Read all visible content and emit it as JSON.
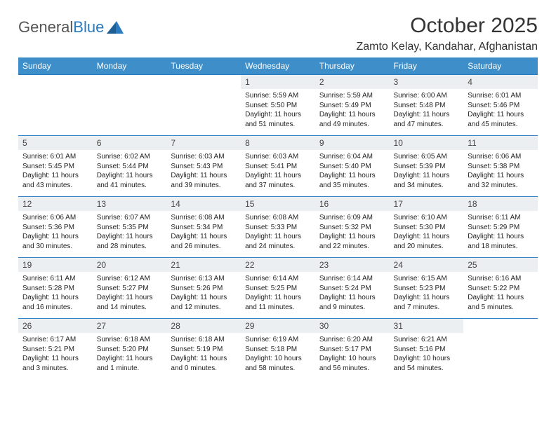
{
  "brand": {
    "part1": "General",
    "part2": "Blue"
  },
  "title": "October 2025",
  "location": "Zamto Kelay, Kandahar, Afghanistan",
  "colors": {
    "header_bg": "#3e8ec9",
    "header_text": "#ffffff",
    "row_border": "#2a7bbf",
    "daynum_bg": "#eceff1",
    "text": "#222222",
    "brand_gray": "#555555",
    "brand_blue": "#2a7bbf"
  },
  "weekdays": [
    "Sunday",
    "Monday",
    "Tuesday",
    "Wednesday",
    "Thursday",
    "Friday",
    "Saturday"
  ],
  "weeks": [
    [
      {
        "empty": true
      },
      {
        "empty": true
      },
      {
        "empty": true
      },
      {
        "day": "1",
        "sunrise": "5:59 AM",
        "sunset": "5:50 PM",
        "daylight": "11 hours and 51 minutes."
      },
      {
        "day": "2",
        "sunrise": "5:59 AM",
        "sunset": "5:49 PM",
        "daylight": "11 hours and 49 minutes."
      },
      {
        "day": "3",
        "sunrise": "6:00 AM",
        "sunset": "5:48 PM",
        "daylight": "11 hours and 47 minutes."
      },
      {
        "day": "4",
        "sunrise": "6:01 AM",
        "sunset": "5:46 PM",
        "daylight": "11 hours and 45 minutes."
      }
    ],
    [
      {
        "day": "5",
        "sunrise": "6:01 AM",
        "sunset": "5:45 PM",
        "daylight": "11 hours and 43 minutes."
      },
      {
        "day": "6",
        "sunrise": "6:02 AM",
        "sunset": "5:44 PM",
        "daylight": "11 hours and 41 minutes."
      },
      {
        "day": "7",
        "sunrise": "6:03 AM",
        "sunset": "5:43 PM",
        "daylight": "11 hours and 39 minutes."
      },
      {
        "day": "8",
        "sunrise": "6:03 AM",
        "sunset": "5:41 PM",
        "daylight": "11 hours and 37 minutes."
      },
      {
        "day": "9",
        "sunrise": "6:04 AM",
        "sunset": "5:40 PM",
        "daylight": "11 hours and 35 minutes."
      },
      {
        "day": "10",
        "sunrise": "6:05 AM",
        "sunset": "5:39 PM",
        "daylight": "11 hours and 34 minutes."
      },
      {
        "day": "11",
        "sunrise": "6:06 AM",
        "sunset": "5:38 PM",
        "daylight": "11 hours and 32 minutes."
      }
    ],
    [
      {
        "day": "12",
        "sunrise": "6:06 AM",
        "sunset": "5:36 PM",
        "daylight": "11 hours and 30 minutes."
      },
      {
        "day": "13",
        "sunrise": "6:07 AM",
        "sunset": "5:35 PM",
        "daylight": "11 hours and 28 minutes."
      },
      {
        "day": "14",
        "sunrise": "6:08 AM",
        "sunset": "5:34 PM",
        "daylight": "11 hours and 26 minutes."
      },
      {
        "day": "15",
        "sunrise": "6:08 AM",
        "sunset": "5:33 PM",
        "daylight": "11 hours and 24 minutes."
      },
      {
        "day": "16",
        "sunrise": "6:09 AM",
        "sunset": "5:32 PM",
        "daylight": "11 hours and 22 minutes."
      },
      {
        "day": "17",
        "sunrise": "6:10 AM",
        "sunset": "5:30 PM",
        "daylight": "11 hours and 20 minutes."
      },
      {
        "day": "18",
        "sunrise": "6:11 AM",
        "sunset": "5:29 PM",
        "daylight": "11 hours and 18 minutes."
      }
    ],
    [
      {
        "day": "19",
        "sunrise": "6:11 AM",
        "sunset": "5:28 PM",
        "daylight": "11 hours and 16 minutes."
      },
      {
        "day": "20",
        "sunrise": "6:12 AM",
        "sunset": "5:27 PM",
        "daylight": "11 hours and 14 minutes."
      },
      {
        "day": "21",
        "sunrise": "6:13 AM",
        "sunset": "5:26 PM",
        "daylight": "11 hours and 12 minutes."
      },
      {
        "day": "22",
        "sunrise": "6:14 AM",
        "sunset": "5:25 PM",
        "daylight": "11 hours and 11 minutes."
      },
      {
        "day": "23",
        "sunrise": "6:14 AM",
        "sunset": "5:24 PM",
        "daylight": "11 hours and 9 minutes."
      },
      {
        "day": "24",
        "sunrise": "6:15 AM",
        "sunset": "5:23 PM",
        "daylight": "11 hours and 7 minutes."
      },
      {
        "day": "25",
        "sunrise": "6:16 AM",
        "sunset": "5:22 PM",
        "daylight": "11 hours and 5 minutes."
      }
    ],
    [
      {
        "day": "26",
        "sunrise": "6:17 AM",
        "sunset": "5:21 PM",
        "daylight": "11 hours and 3 minutes."
      },
      {
        "day": "27",
        "sunrise": "6:18 AM",
        "sunset": "5:20 PM",
        "daylight": "11 hours and 1 minute."
      },
      {
        "day": "28",
        "sunrise": "6:18 AM",
        "sunset": "5:19 PM",
        "daylight": "11 hours and 0 minutes."
      },
      {
        "day": "29",
        "sunrise": "6:19 AM",
        "sunset": "5:18 PM",
        "daylight": "10 hours and 58 minutes."
      },
      {
        "day": "30",
        "sunrise": "6:20 AM",
        "sunset": "5:17 PM",
        "daylight": "10 hours and 56 minutes."
      },
      {
        "day": "31",
        "sunrise": "6:21 AM",
        "sunset": "5:16 PM",
        "daylight": "10 hours and 54 minutes."
      },
      {
        "empty": true
      }
    ]
  ]
}
